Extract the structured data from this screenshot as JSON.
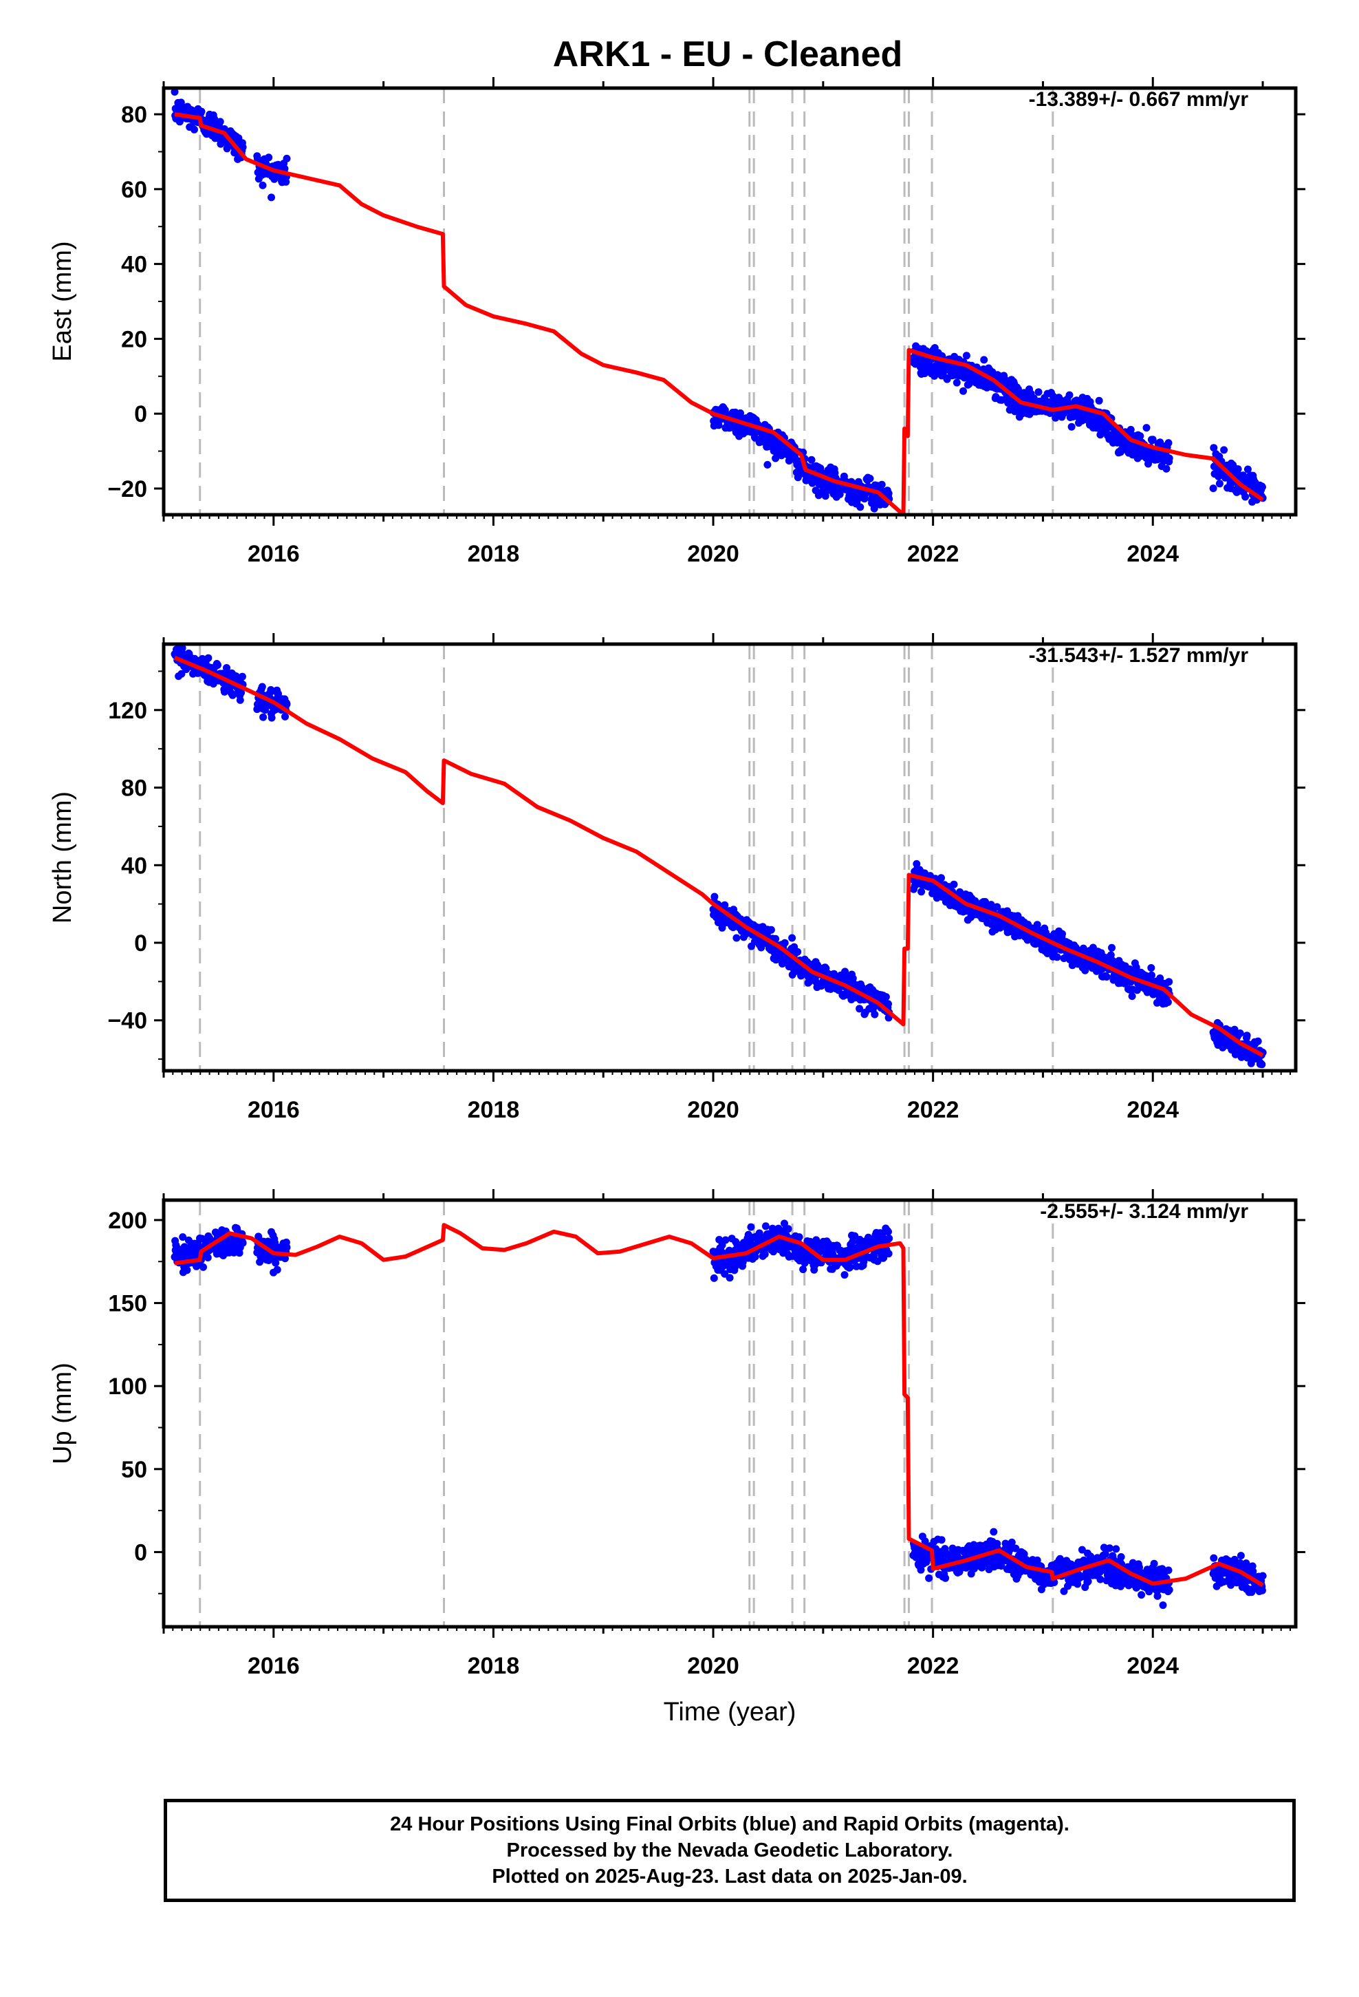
{
  "colors": {
    "data_points": "#0000ff",
    "model_line": "#ff0000",
    "breaks": "#bbbbbb",
    "axes": "#000000"
  },
  "chart_data": [
    {
      "type": "scatter",
      "title": "ARK1  - EU - Cleaned",
      "xlabel": "",
      "ylabel": "East (mm)",
      "rate_label": "-13.389+/- 0.667 mm/yr",
      "xlim": [
        2015.0,
        2025.3
      ],
      "ylim": [
        -27,
        87
      ],
      "xticks": [
        2016,
        2018,
        2020,
        2022,
        2024
      ],
      "yticks": [
        -20,
        0,
        20,
        40,
        60,
        80
      ],
      "grid": false,
      "break_epochs": [
        2015.33,
        2017.55,
        2020.33,
        2020.37,
        2020.72,
        2020.83,
        2021.74,
        2021.78,
        2021.99,
        2023.09
      ],
      "observed_segments": [
        {
          "from": 2015.1,
          "to": 2015.72,
          "values": [
            [
              2015.1,
              81
            ],
            [
              2015.3,
              79
            ],
            [
              2015.5,
              76
            ],
            [
              2015.72,
              70
            ]
          ]
        },
        {
          "from": 2015.85,
          "to": 2016.12,
          "values": [
            [
              2015.85,
              66
            ],
            [
              2016.12,
              64
            ]
          ]
        },
        {
          "from": 2020.0,
          "to": 2021.6,
          "values": [
            [
              2020.0,
              0
            ],
            [
              2020.33,
              -3
            ],
            [
              2020.7,
              -10
            ],
            [
              2020.85,
              -16
            ],
            [
              2021.1,
              -19
            ],
            [
              2021.6,
              -22
            ]
          ]
        },
        {
          "from": 2021.82,
          "to": 2024.15,
          "values": [
            [
              2021.82,
              15
            ],
            [
              2022.3,
              11
            ],
            [
              2022.6,
              8
            ],
            [
              2022.8,
              3
            ],
            [
              2023.09,
              2
            ],
            [
              2023.4,
              1
            ],
            [
              2023.7,
              -7
            ],
            [
              2024.15,
              -11
            ]
          ]
        },
        {
          "from": 2024.55,
          "to": 2025.0,
          "values": [
            [
              2024.55,
              -13
            ],
            [
              2024.8,
              -18
            ],
            [
              2025.0,
              -22
            ]
          ]
        }
      ],
      "model": [
        [
          2015.1,
          80
        ],
        [
          2015.33,
          79
        ],
        [
          2015.34,
          77
        ],
        [
          2015.55,
          75
        ],
        [
          2015.75,
          68
        ],
        [
          2016.0,
          65
        ],
        [
          2016.3,
          63
        ],
        [
          2016.6,
          61
        ],
        [
          2016.8,
          56
        ],
        [
          2017.0,
          53
        ],
        [
          2017.3,
          50
        ],
        [
          2017.54,
          48
        ],
        [
          2017.55,
          34
        ],
        [
          2017.75,
          29
        ],
        [
          2018.0,
          26
        ],
        [
          2018.3,
          24
        ],
        [
          2018.55,
          22
        ],
        [
          2018.8,
          16
        ],
        [
          2019.0,
          13
        ],
        [
          2019.3,
          11
        ],
        [
          2019.55,
          9
        ],
        [
          2019.8,
          3
        ],
        [
          2020.0,
          0
        ],
        [
          2020.33,
          -3
        ],
        [
          2020.55,
          -5
        ],
        [
          2020.8,
          -11
        ],
        [
          2020.84,
          -15
        ],
        [
          2021.1,
          -18
        ],
        [
          2021.5,
          -21
        ],
        [
          2021.73,
          -27
        ],
        [
          2021.74,
          -4
        ],
        [
          2021.77,
          -6
        ],
        [
          2021.78,
          17
        ],
        [
          2022.0,
          15
        ],
        [
          2022.3,
          13
        ],
        [
          2022.55,
          9
        ],
        [
          2022.8,
          3
        ],
        [
          2023.09,
          1
        ],
        [
          2023.3,
          2
        ],
        [
          2023.55,
          0
        ],
        [
          2023.8,
          -7
        ],
        [
          2024.0,
          -9
        ],
        [
          2024.3,
          -11
        ],
        [
          2024.55,
          -12
        ],
        [
          2024.8,
          -19
        ],
        [
          2025.0,
          -23
        ]
      ]
    },
    {
      "type": "scatter",
      "xlabel": "",
      "ylabel": "North (mm)",
      "rate_label": "-31.543+/- 1.527 mm/yr",
      "xlim": [
        2015.0,
        2025.3
      ],
      "ylim": [
        -66,
        154
      ],
      "xticks": [
        2016,
        2018,
        2020,
        2022,
        2024
      ],
      "yticks": [
        -40,
        0,
        40,
        80,
        120
      ],
      "grid": false,
      "break_epochs": [
        2015.33,
        2017.55,
        2020.33,
        2020.37,
        2020.72,
        2020.83,
        2021.74,
        2021.78,
        2021.99,
        2023.09
      ],
      "observed_segments": [
        {
          "from": 2015.1,
          "to": 2015.72,
          "values": [
            [
              2015.1,
              148
            ],
            [
              2015.4,
              140
            ],
            [
              2015.72,
              132
            ]
          ]
        },
        {
          "from": 2015.85,
          "to": 2016.12,
          "values": [
            [
              2015.85,
              125
            ],
            [
              2016.12,
              121
            ]
          ]
        },
        {
          "from": 2020.0,
          "to": 2021.6,
          "values": [
            [
              2020.0,
              17
            ],
            [
              2020.4,
              5
            ],
            [
              2020.8,
              -12
            ],
            [
              2021.2,
              -22
            ],
            [
              2021.6,
              -33
            ]
          ]
        },
        {
          "from": 2021.82,
          "to": 2024.15,
          "values": [
            [
              2021.82,
              35
            ],
            [
              2022.3,
              20
            ],
            [
              2022.8,
              8
            ],
            [
              2023.3,
              -5
            ],
            [
              2023.8,
              -17
            ],
            [
              2024.15,
              -25
            ]
          ]
        },
        {
          "from": 2024.55,
          "to": 2025.0,
          "values": [
            [
              2024.55,
              -47
            ],
            [
              2024.8,
              -54
            ],
            [
              2025.0,
              -58
            ]
          ]
        }
      ],
      "model": [
        [
          2015.1,
          147
        ],
        [
          2015.4,
          140
        ],
        [
          2015.7,
          132
        ],
        [
          2016.0,
          124
        ],
        [
          2016.3,
          113
        ],
        [
          2016.6,
          105
        ],
        [
          2016.9,
          95
        ],
        [
          2017.2,
          88
        ],
        [
          2017.4,
          78
        ],
        [
          2017.54,
          72
        ],
        [
          2017.55,
          94
        ],
        [
          2017.8,
          87
        ],
        [
          2018.1,
          82
        ],
        [
          2018.4,
          70
        ],
        [
          2018.7,
          63
        ],
        [
          2019.0,
          54
        ],
        [
          2019.3,
          47
        ],
        [
          2019.6,
          36
        ],
        [
          2019.9,
          25
        ],
        [
          2020.0,
          20
        ],
        [
          2020.3,
          8
        ],
        [
          2020.6,
          -2
        ],
        [
          2020.9,
          -15
        ],
        [
          2021.2,
          -22
        ],
        [
          2021.5,
          -31
        ],
        [
          2021.73,
          -42
        ],
        [
          2021.74,
          -3
        ],
        [
          2021.77,
          -3
        ],
        [
          2021.78,
          35
        ],
        [
          2022.0,
          32
        ],
        [
          2022.3,
          20
        ],
        [
          2022.6,
          14
        ],
        [
          2022.9,
          5
        ],
        [
          2023.2,
          -3
        ],
        [
          2023.5,
          -10
        ],
        [
          2023.8,
          -18
        ],
        [
          2024.1,
          -24
        ],
        [
          2024.35,
          -37
        ],
        [
          2024.6,
          -44
        ],
        [
          2024.8,
          -52
        ],
        [
          2025.0,
          -58
        ]
      ]
    },
    {
      "type": "scatter",
      "xlabel": "Time (year)",
      "ylabel": "Up (mm)",
      "rate_label": "-2.555+/- 3.124 mm/yr",
      "xlim": [
        2015.0,
        2025.3
      ],
      "ylim": [
        -45,
        212
      ],
      "xticks": [
        2016,
        2018,
        2020,
        2022,
        2024
      ],
      "yticks": [
        0,
        50,
        100,
        150,
        200
      ],
      "grid": false,
      "break_epochs": [
        2015.33,
        2017.55,
        2020.33,
        2020.37,
        2020.72,
        2020.83,
        2021.74,
        2021.78,
        2021.99,
        2023.09
      ],
      "observed_segments": [
        {
          "from": 2015.1,
          "to": 2015.72,
          "values": [
            [
              2015.1,
              177
            ],
            [
              2015.4,
              183
            ],
            [
              2015.72,
              190
            ]
          ]
        },
        {
          "from": 2015.85,
          "to": 2016.12,
          "values": [
            [
              2015.85,
              183
            ],
            [
              2016.12,
              180
            ]
          ]
        },
        {
          "from": 2020.0,
          "to": 2021.6,
          "values": [
            [
              2020.0,
              175
            ],
            [
              2020.3,
              182
            ],
            [
              2020.6,
              188
            ],
            [
              2020.9,
              180
            ],
            [
              2021.2,
              178
            ],
            [
              2021.6,
              186
            ]
          ]
        },
        {
          "from": 2021.82,
          "to": 2024.15,
          "values": [
            [
              2021.82,
              0
            ],
            [
              2022.2,
              -6
            ],
            [
              2022.6,
              0
            ],
            [
              2023.0,
              -14
            ],
            [
              2023.5,
              -8
            ],
            [
              2024.15,
              -20
            ]
          ]
        },
        {
          "from": 2024.55,
          "to": 2025.0,
          "values": [
            [
              2024.55,
              -9
            ],
            [
              2024.8,
              -13
            ],
            [
              2025.0,
              -20
            ]
          ]
        }
      ],
      "model": [
        [
          2015.1,
          174
        ],
        [
          2015.33,
          176
        ],
        [
          2015.34,
          181
        ],
        [
          2015.6,
          192
        ],
        [
          2015.8,
          189
        ],
        [
          2016.0,
          180
        ],
        [
          2016.2,
          179
        ],
        [
          2016.4,
          184
        ],
        [
          2016.6,
          190
        ],
        [
          2016.8,
          186
        ],
        [
          2017.0,
          176
        ],
        [
          2017.2,
          178
        ],
        [
          2017.54,
          188
        ],
        [
          2017.55,
          197
        ],
        [
          2017.7,
          192
        ],
        [
          2017.9,
          183
        ],
        [
          2018.1,
          182
        ],
        [
          2018.3,
          186
        ],
        [
          2018.55,
          193
        ],
        [
          2018.75,
          190
        ],
        [
          2018.95,
          180
        ],
        [
          2019.15,
          181
        ],
        [
          2019.4,
          186
        ],
        [
          2019.6,
          190
        ],
        [
          2019.8,
          186
        ],
        [
          2020.0,
          177
        ],
        [
          2020.3,
          180
        ],
        [
          2020.6,
          190
        ],
        [
          2020.8,
          186
        ],
        [
          2021.0,
          176
        ],
        [
          2021.2,
          176
        ],
        [
          2021.5,
          184
        ],
        [
          2021.7,
          186
        ],
        [
          2021.73,
          183
        ],
        [
          2021.74,
          95
        ],
        [
          2021.77,
          93
        ],
        [
          2021.78,
          8
        ],
        [
          2021.99,
          1
        ],
        [
          2022.0,
          -10
        ],
        [
          2022.3,
          -5
        ],
        [
          2022.6,
          1
        ],
        [
          2022.85,
          -9
        ],
        [
          2023.08,
          -12
        ],
        [
          2023.09,
          -16
        ],
        [
          2023.35,
          -10
        ],
        [
          2023.6,
          -5
        ],
        [
          2023.8,
          -13
        ],
        [
          2024.0,
          -19
        ],
        [
          2024.3,
          -16
        ],
        [
          2024.6,
          -7
        ],
        [
          2024.8,
          -12
        ],
        [
          2025.0,
          -20
        ]
      ]
    }
  ],
  "footer": {
    "line1": "24 Hour Positions Using Final Orbits (blue) and Rapid Orbits (magenta).",
    "line2": "Processed by the Nevada Geodetic Laboratory.",
    "line3": "Plotted on 2025-Aug-23. Last data on 2025-Jan-09."
  }
}
